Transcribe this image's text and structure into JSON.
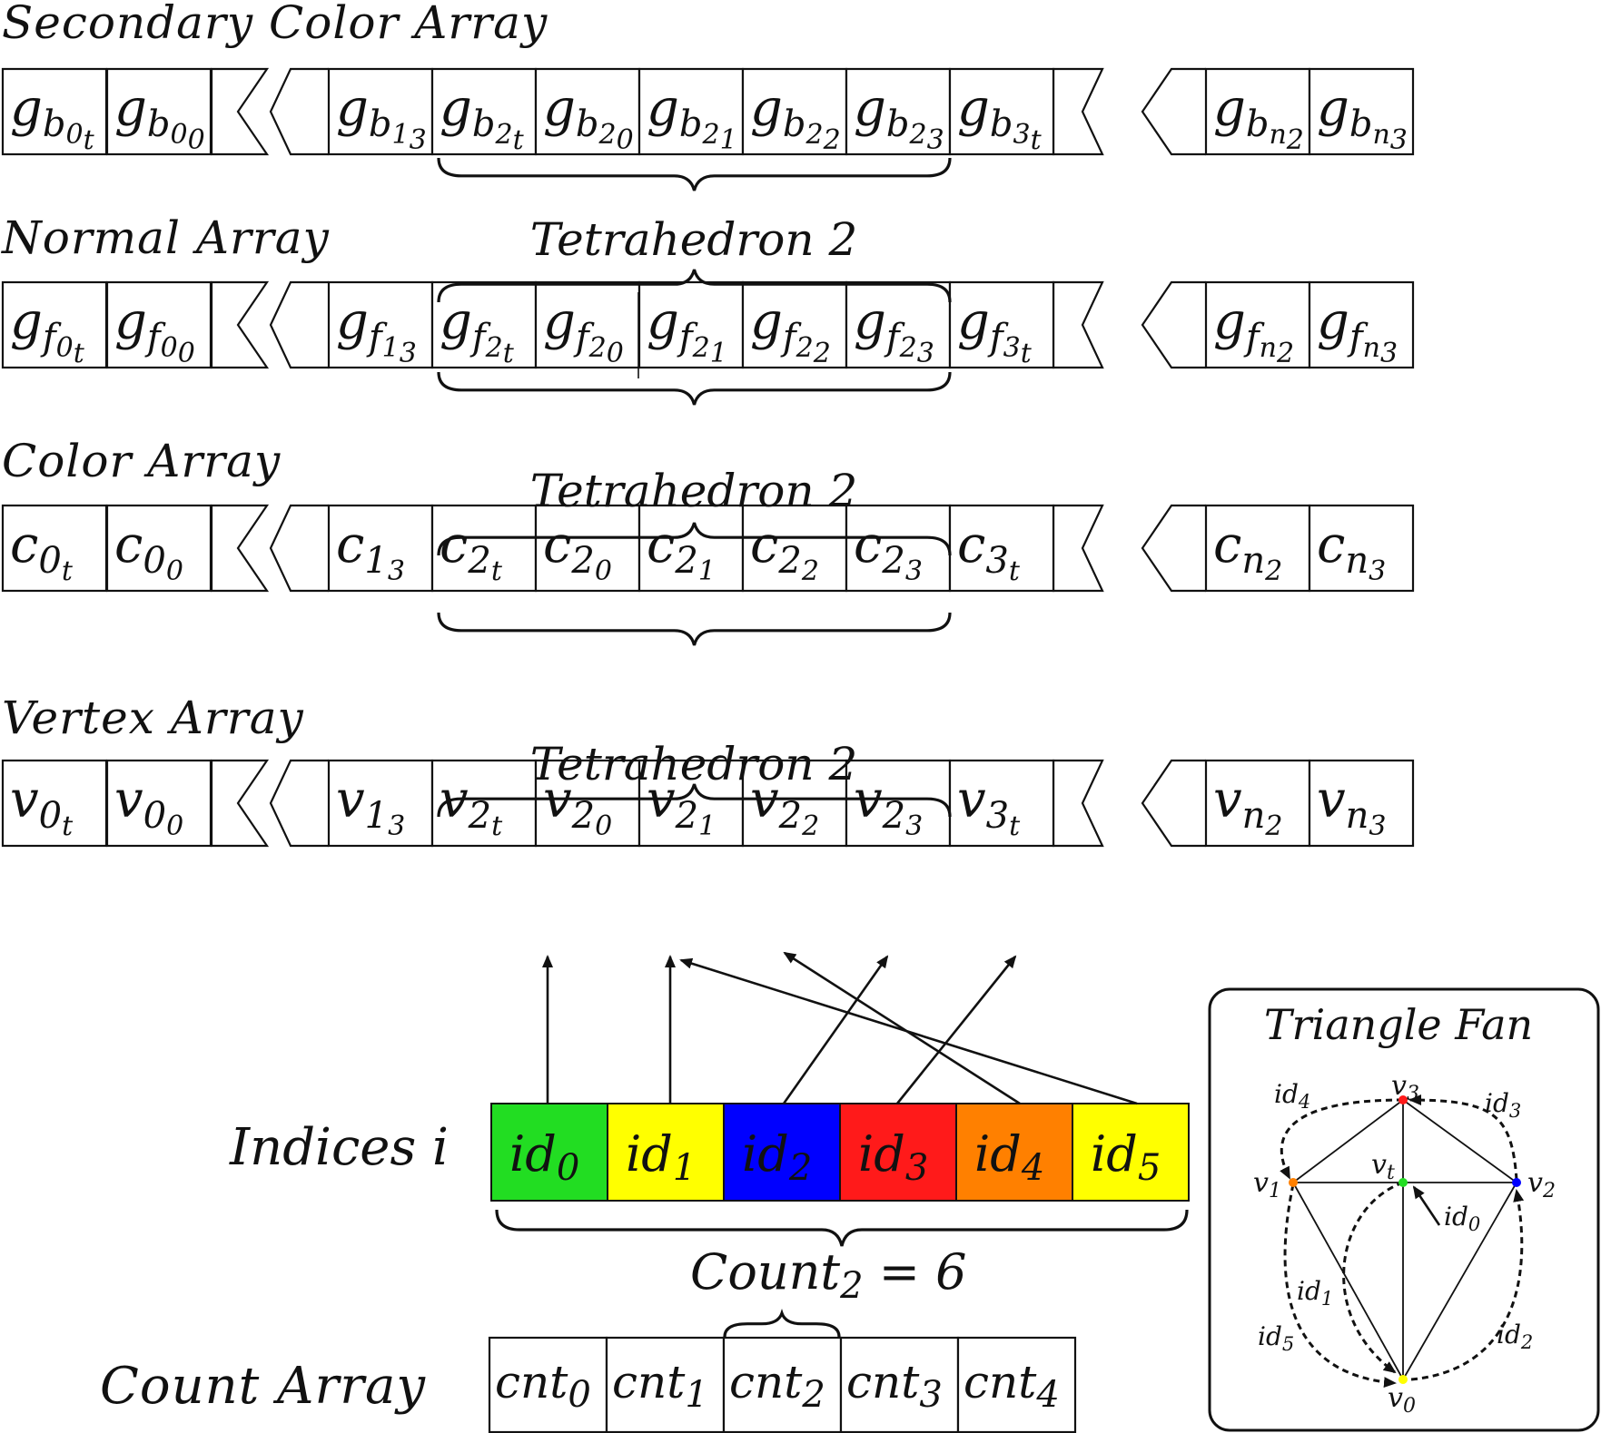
{
  "arrays": [
    {
      "id": "secondary-color",
      "title": "Secondary Color Array",
      "base": "g",
      "sub": "b",
      "cells": [
        {
          "s": "0",
          "ss": "t"
        },
        {
          "s": "0",
          "ss": "0"
        },
        {
          "s": "1",
          "ss": "3"
        },
        {
          "s": "2",
          "ss": "t"
        },
        {
          "s": "2",
          "ss": "0"
        },
        {
          "s": "2",
          "ss": "1"
        },
        {
          "s": "2",
          "ss": "2"
        },
        {
          "s": "2",
          "ss": "3"
        },
        {
          "s": "3",
          "ss": "t"
        },
        {
          "s": "n",
          "ss": "2"
        },
        {
          "s": "n",
          "ss": "3"
        }
      ]
    },
    {
      "id": "normal",
      "title": "Normal Array",
      "base": "g",
      "sub": "f",
      "cells": [
        {
          "s": "0",
          "ss": "t"
        },
        {
          "s": "0",
          "ss": "0"
        },
        {
          "s": "1",
          "ss": "3"
        },
        {
          "s": "2",
          "ss": "t"
        },
        {
          "s": "2",
          "ss": "0"
        },
        {
          "s": "2",
          "ss": "1"
        },
        {
          "s": "2",
          "ss": "2"
        },
        {
          "s": "2",
          "ss": "3"
        },
        {
          "s": "3",
          "ss": "t"
        },
        {
          "s": "n",
          "ss": "2"
        },
        {
          "s": "n",
          "ss": "3"
        }
      ]
    },
    {
      "id": "color",
      "title": "Color Array",
      "base": "c",
      "sub": "",
      "cells": [
        {
          "s": "0",
          "ss": "t"
        },
        {
          "s": "0",
          "ss": "0"
        },
        {
          "s": "1",
          "ss": "3"
        },
        {
          "s": "2",
          "ss": "t"
        },
        {
          "s": "2",
          "ss": "0"
        },
        {
          "s": "2",
          "ss": "1"
        },
        {
          "s": "2",
          "ss": "2"
        },
        {
          "s": "2",
          "ss": "3"
        },
        {
          "s": "3",
          "ss": "t"
        },
        {
          "s": "n",
          "ss": "2"
        },
        {
          "s": "n",
          "ss": "3"
        }
      ]
    },
    {
      "id": "vertex",
      "title": "Vertex Array",
      "base": "v",
      "sub": "",
      "cells": [
        {
          "s": "0",
          "ss": "t"
        },
        {
          "s": "0",
          "ss": "0"
        },
        {
          "s": "1",
          "ss": "3"
        },
        {
          "s": "2",
          "ss": "t"
        },
        {
          "s": "2",
          "ss": "0"
        },
        {
          "s": "2",
          "ss": "1"
        },
        {
          "s": "2",
          "ss": "2"
        },
        {
          "s": "2",
          "ss": "3"
        },
        {
          "s": "3",
          "ss": "t"
        },
        {
          "s": "n",
          "ss": "2"
        },
        {
          "s": "n",
          "ss": "3"
        }
      ]
    }
  ],
  "tetra_label": {
    "text": "Tetrahedron",
    "num": "2"
  },
  "indices": {
    "label": "Indices i",
    "items": [
      {
        "base": "id",
        "sub": "0",
        "color": "#22dd22"
      },
      {
        "base": "id",
        "sub": "1",
        "color": "#ffff00"
      },
      {
        "base": "id",
        "sub": "2",
        "color": "#0000ff"
      },
      {
        "base": "id",
        "sub": "3",
        "color": "#ff1a1a"
      },
      {
        "base": "id",
        "sub": "4",
        "color": "#ff8000"
      },
      {
        "base": "id",
        "sub": "5",
        "color": "#ffff00"
      }
    ],
    "arrow_targets": [
      3,
      4,
      6,
      7,
      5,
      4
    ]
  },
  "count_label": {
    "base": "Count",
    "sub": "2",
    "rest": " = 6"
  },
  "count_array": {
    "label": "Count Array",
    "items": [
      {
        "base": "cnt",
        "sub": "0"
      },
      {
        "base": "cnt",
        "sub": "1"
      },
      {
        "base": "cnt",
        "sub": "2"
      },
      {
        "base": "cnt",
        "sub": "3"
      },
      {
        "base": "cnt",
        "sub": "4"
      }
    ]
  },
  "triangle_fan": {
    "title": "Triangle Fan",
    "vertices": [
      {
        "base": "v",
        "sub": "3",
        "color": "#ff1a1a"
      },
      {
        "base": "v",
        "sub": "1",
        "color": "#ff8000"
      },
      {
        "base": "v",
        "sub": "t",
        "color": "#22dd22"
      },
      {
        "base": "v",
        "sub": "2",
        "color": "#0000ff"
      },
      {
        "base": "v",
        "sub": "0",
        "color": "#ffff00"
      }
    ],
    "edge_labels": [
      {
        "base": "id",
        "sub": "4"
      },
      {
        "base": "id",
        "sub": "3"
      },
      {
        "base": "id",
        "sub": "0"
      },
      {
        "base": "id",
        "sub": "1"
      },
      {
        "base": "id",
        "sub": "5"
      },
      {
        "base": "id",
        "sub": "2"
      }
    ]
  }
}
